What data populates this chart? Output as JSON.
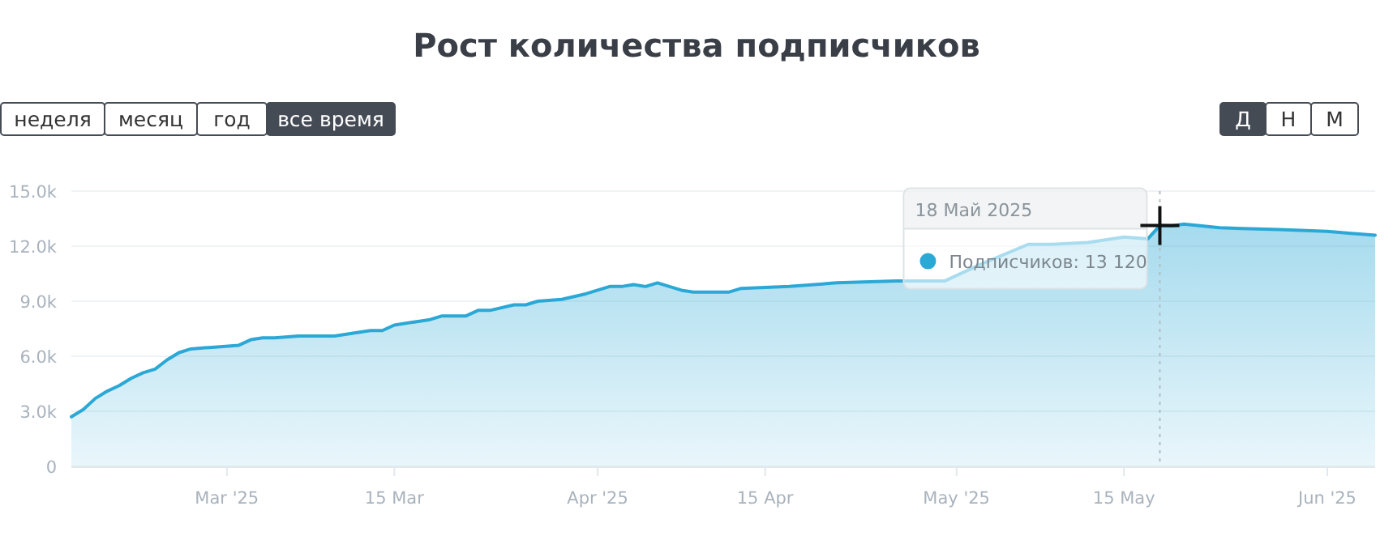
{
  "chart_data": {
    "type": "area",
    "title": "Рост количества подписчиков",
    "x": [
      "2025-02-16",
      "2025-02-17",
      "2025-02-18",
      "2025-02-19",
      "2025-02-20",
      "2025-02-21",
      "2025-02-22",
      "2025-02-23",
      "2025-02-24",
      "2025-02-25",
      "2025-02-26",
      "2025-02-28",
      "2025-03-02",
      "2025-03-03",
      "2025-03-04",
      "2025-03-05",
      "2025-03-07",
      "2025-03-10",
      "2025-03-13",
      "2025-03-14",
      "2025-03-15",
      "2025-03-17",
      "2025-03-18",
      "2025-03-19",
      "2025-03-21",
      "2025-03-22",
      "2025-03-23",
      "2025-03-25",
      "2025-03-26",
      "2025-03-27",
      "2025-03-29",
      "2025-03-31",
      "2025-04-01",
      "2025-04-02",
      "2025-04-03",
      "2025-04-04",
      "2025-04-05",
      "2025-04-06",
      "2025-04-07",
      "2025-04-08",
      "2025-04-09",
      "2025-04-12",
      "2025-04-13",
      "2025-04-17",
      "2025-04-21",
      "2025-04-26",
      "2025-04-30",
      "2025-05-03",
      "2025-05-07",
      "2025-05-09",
      "2025-05-12",
      "2025-05-15",
      "2025-05-17",
      "2025-05-18",
      "2025-05-19",
      "2025-05-20",
      "2025-05-23",
      "2025-05-28",
      "2025-06-01",
      "2025-06-03",
      "2025-06-05"
    ],
    "series": [
      {
        "color": "#2aa8d6",
        "values": [
          2700,
          3100,
          3700,
          4100,
          4400,
          4800,
          5100,
          5300,
          5800,
          6200,
          6400,
          6500,
          6600,
          6900,
          7000,
          7000,
          7100,
          7100,
          7400,
          7400,
          7700,
          7900,
          8000,
          8200,
          8200,
          8500,
          8500,
          8800,
          8800,
          9000,
          9100,
          9400,
          9600,
          9800,
          9800,
          9900,
          9800,
          10000,
          9800,
          9600,
          9500,
          9500,
          9700,
          9800,
          10000,
          10100,
          10100,
          11000,
          12100,
          12100,
          12200,
          12500,
          12400,
          13120,
          13100,
          13200,
          13000,
          12900,
          12800,
          12700,
          12600
        ]
      }
    ],
    "xlim": [
      "2025-02-16",
      "2025-06-05"
    ],
    "xticks": [
      {
        "value": "2025-03-01",
        "label": "Mar '25"
      },
      {
        "value": "2025-03-15",
        "label": "15 Mar"
      },
      {
        "value": "2025-04-01",
        "label": "Apr '25"
      },
      {
        "value": "2025-04-15",
        "label": "15 Apr"
      },
      {
        "value": "2025-05-01",
        "label": "May '25"
      },
      {
        "value": "2025-05-15",
        "label": "15 May"
      },
      {
        "value": "2025-06-01",
        "label": "Jun '25"
      }
    ],
    "ylim": [
      0,
      15000
    ],
    "yticks": [
      0,
      {
        "value": 3000,
        "label": "3.0k"
      },
      {
        "value": 6000,
        "label": "6.0k"
      },
      {
        "value": 9000,
        "label": "9.0k"
      },
      {
        "value": 12000,
        "label": "12.0k"
      },
      {
        "value": 15000,
        "label": "15.0k"
      }
    ],
    "grid": "y",
    "ref_lines": [
      {
        "axis": "x",
        "value": "2025-05-18",
        "line_style": "dotted",
        "color": "#b0bec5"
      }
    ],
    "annotations": [
      {
        "text": "18 Май 2025",
        "x": "2025-05-18",
        "y": 13120
      },
      {
        "text": "Подписчиков: 13 120",
        "x": "2025-05-18",
        "y": 13120
      },
      "неделя",
      "месяц",
      "год",
      "все время",
      "Д",
      "Н",
      "М"
    ]
  }
}
